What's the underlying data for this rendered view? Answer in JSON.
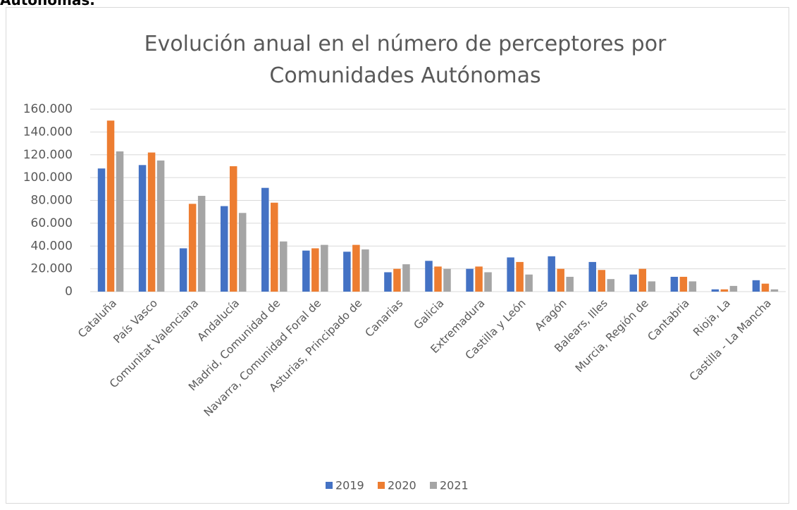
{
  "page_text": "Autónomas.",
  "chart_data": {
    "type": "bar",
    "title": "Evolución anual en el número de perceptores por Comunidades Autónomas",
    "categories": [
      "Cataluña",
      "País Vasco",
      "Comunitat Valenciana",
      "Andalucía",
      "Madrid, Comunidad de",
      "Navarra, Comunidad Foral de",
      "Asturias, Principado de",
      "Canarias",
      "Galicia",
      "Extremadura",
      "Castilla y León",
      "Aragón",
      "Balears, Illes",
      "Murcia, Región de",
      "Cantabria",
      "Rioja, La",
      "Castilla - La Mancha"
    ],
    "series": [
      {
        "name": "2019",
        "color": "#4472c4",
        "values": [
          108000,
          111000,
          38000,
          75000,
          91000,
          36000,
          35000,
          17000,
          27000,
          20000,
          30000,
          31000,
          26000,
          15000,
          13000,
          2000,
          10000
        ]
      },
      {
        "name": "2020",
        "color": "#ed7d31",
        "values": [
          150000,
          122000,
          77000,
          110000,
          78000,
          38000,
          41000,
          20000,
          22000,
          22000,
          26000,
          20000,
          19000,
          20000,
          13000,
          2000,
          7000
        ]
      },
      {
        "name": "2021",
        "color": "#a5a5a5",
        "values": [
          123000,
          115000,
          84000,
          69000,
          44000,
          41000,
          37000,
          24000,
          20000,
          17000,
          15000,
          13000,
          11000,
          9000,
          9000,
          5000,
          2000
        ]
      }
    ],
    "ylim": [
      0,
      160000
    ],
    "yticks": [
      0,
      {
        "value": 20000,
        "label": "20.000"
      },
      {
        "value": 40000,
        "label": "40.000"
      },
      {
        "value": 60000,
        "label": "60.000"
      },
      {
        "value": 80000,
        "label": "80.000"
      },
      {
        "value": 100000,
        "label": "100.000"
      },
      {
        "value": 120000,
        "label": "120.000"
      },
      {
        "value": 140000,
        "label": "140.000"
      },
      {
        "value": 160000,
        "label": "160.000"
      }
    ],
    "grid": true,
    "legend": "bottom"
  }
}
